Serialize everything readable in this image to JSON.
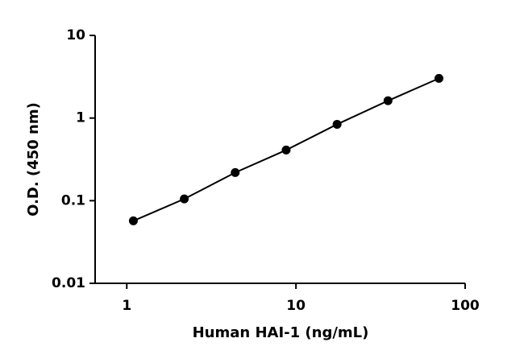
{
  "chart_data": {
    "type": "line",
    "x_label": "Human HAI-1 (ng/mL)",
    "y_label": "O.D. (450 nm)",
    "x": [
      1.09375,
      2.1875,
      4.375,
      8.75,
      17.5,
      35,
      70
    ],
    "series": [
      {
        "values": [
          0.057,
          0.105,
          0.219,
          0.41,
          0.84,
          1.62,
          3.02
        ],
        "color": "#000000"
      }
    ],
    "xlim": [
      0.65,
      100
    ],
    "ylim": [
      0.01,
      10
    ],
    "xticks": [
      1,
      10,
      100
    ],
    "yticks": [
      0.01,
      0.1,
      1,
      10
    ],
    "xscale": "log",
    "yscale": "log",
    "markers": true
  }
}
